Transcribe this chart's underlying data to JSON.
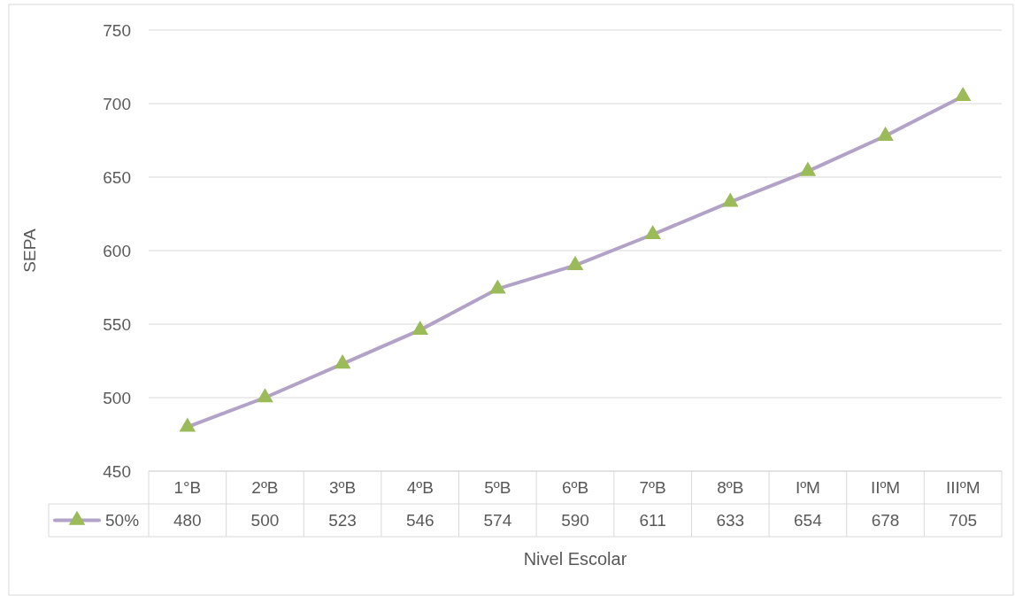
{
  "chart_data": {
    "type": "line",
    "xlabel": "Nivel Escolar",
    "ylabel": "SEPA",
    "categories": [
      "1°B",
      "2ºB",
      "3ºB",
      "4ºB",
      "5ºB",
      "6ºB",
      "7ºB",
      "8ºB",
      "IºM",
      "IIºM",
      "IIIºM"
    ],
    "series": [
      {
        "name": "50%",
        "color": "#b3a2c7",
        "values": [
          480,
          500,
          523,
          546,
          574,
          590,
          611,
          633,
          654,
          678,
          705
        ]
      }
    ],
    "marker": "triangle",
    "ylim": [
      450,
      750
    ],
    "yticks": [
      450,
      500,
      550,
      600,
      650,
      700,
      750
    ],
    "grid": "y",
    "legend": "bottom",
    "data_labels": true
  }
}
